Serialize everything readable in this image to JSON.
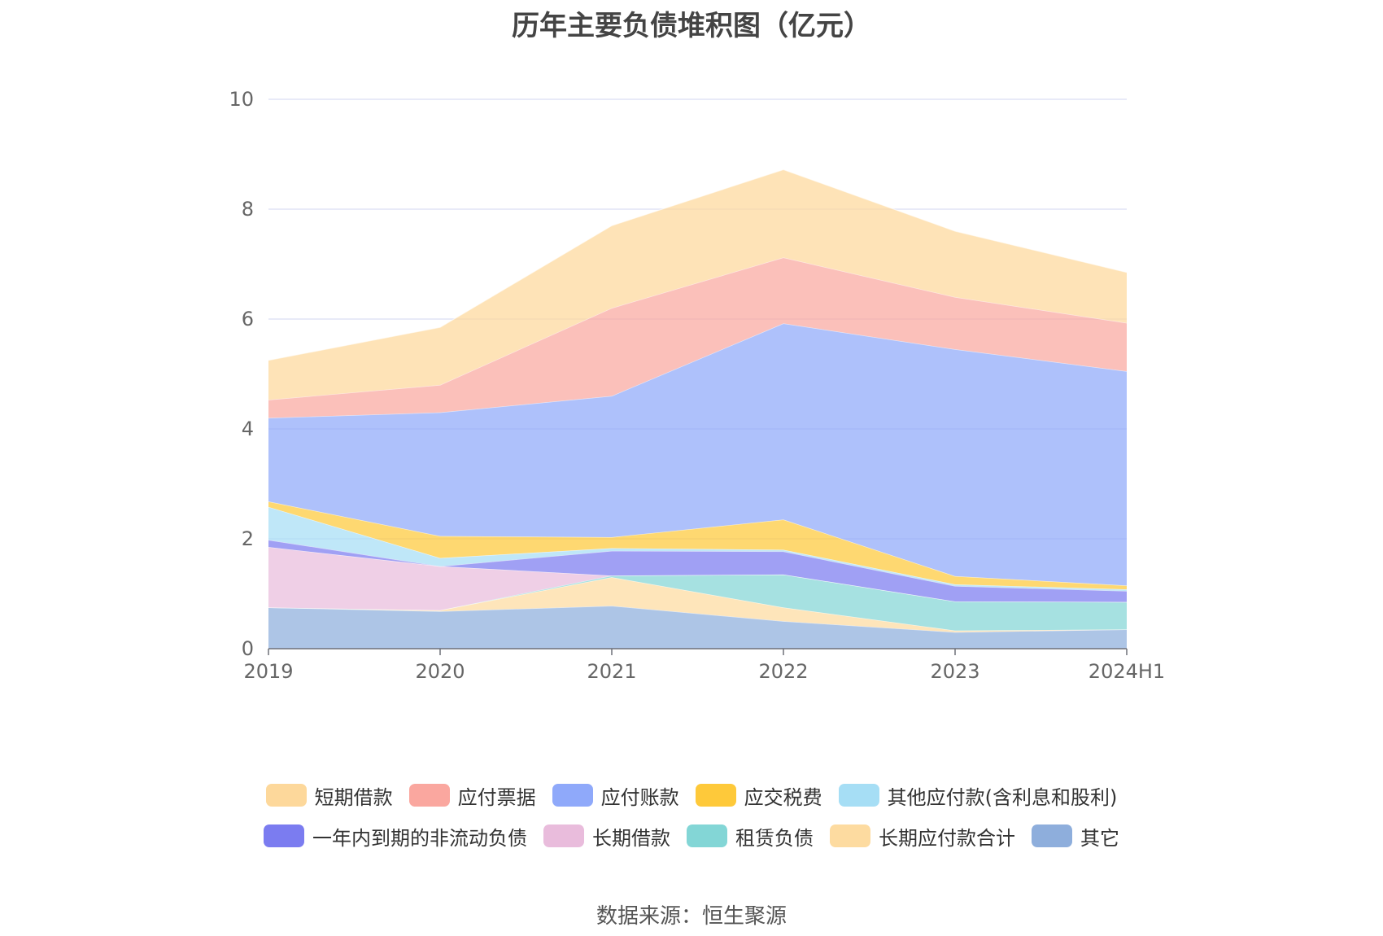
{
  "chart_data": {
    "type": "area",
    "stacked": true,
    "title": "历年主要负债堆积图（亿元）",
    "x": [
      "2019",
      "2020",
      "2021",
      "2022",
      "2023",
      "2024H1"
    ],
    "ylim": [
      0,
      10
    ],
    "yticks": [
      0,
      2,
      4,
      6,
      8,
      10
    ],
    "grid": true,
    "legend_position": "bottom",
    "series": [
      {
        "name": "其它",
        "color": "#8eaedc",
        "values": [
          0.75,
          0.68,
          0.78,
          0.5,
          0.3,
          0.35
        ]
      },
      {
        "name": "长期应付款合计",
        "color": "#fddba0",
        "values": [
          0.0,
          0.02,
          0.52,
          0.25,
          0.03,
          0.0
        ]
      },
      {
        "name": "租赁负债",
        "color": "#83d6d6",
        "values": [
          0.0,
          0.0,
          0.03,
          0.6,
          0.53,
          0.5
        ]
      },
      {
        "name": "长期借款",
        "color": "#e9bcdc",
        "values": [
          1.1,
          0.8,
          0.0,
          0.0,
          0.0,
          0.0
        ]
      },
      {
        "name": "一年内到期的非流动负债",
        "color": "#7b7cf0",
        "values": [
          0.13,
          0.0,
          0.45,
          0.42,
          0.28,
          0.2
        ]
      },
      {
        "name": "其他应付款(含利息和股利)",
        "color": "#a6def5",
        "values": [
          0.6,
          0.15,
          0.05,
          0.03,
          0.03,
          0.03
        ]
      },
      {
        "name": "应交税费",
        "color": "#fec93a",
        "values": [
          0.1,
          0.4,
          0.2,
          0.55,
          0.15,
          0.07
        ]
      },
      {
        "name": "应付账款",
        "color": "#8fa9fa",
        "values": [
          1.52,
          2.25,
          2.57,
          3.57,
          4.13,
          3.9
        ]
      },
      {
        "name": "应付票据",
        "color": "#faa79f",
        "values": [
          0.33,
          0.5,
          1.6,
          1.2,
          0.95,
          0.88
        ]
      },
      {
        "name": "短期借款",
        "color": "#fdd89b",
        "values": [
          0.72,
          1.05,
          1.5,
          1.6,
          1.2,
          0.92
        ]
      }
    ]
  },
  "legend": {
    "row1": [
      {
        "label": "短期借款",
        "color": "#fdd89b"
      },
      {
        "label": "应付票据",
        "color": "#faa79f"
      },
      {
        "label": "应付账款",
        "color": "#8fa9fa"
      },
      {
        "label": "应交税费",
        "color": "#fec93a"
      },
      {
        "label": "其他应付款(含利息和股利)",
        "color": "#a6def5"
      }
    ],
    "row2": [
      {
        "label": "一年内到期的非流动负债",
        "color": "#7b7cf0"
      },
      {
        "label": "长期借款",
        "color": "#e9bcdc"
      },
      {
        "label": "租赁负债",
        "color": "#83d6d6"
      },
      {
        "label": "长期应付款合计",
        "color": "#fddba0"
      },
      {
        "label": "其它",
        "color": "#8eaedc"
      }
    ]
  },
  "source": "数据来源：恒生聚源"
}
